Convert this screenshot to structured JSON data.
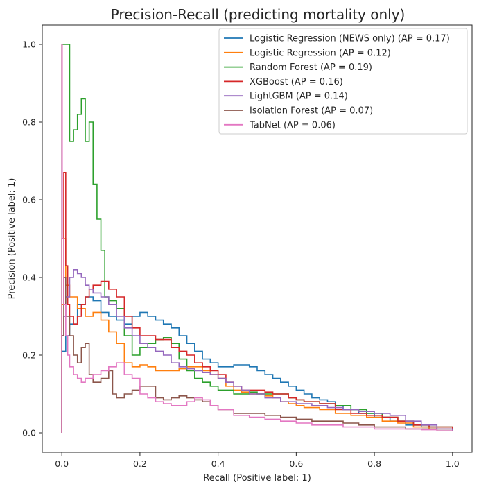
{
  "chart_data": {
    "type": "line",
    "title": "Precision-Recall (predicting mortality only)",
    "xlabel": "Recall (Positive label: 1)",
    "ylabel": "Precision (Positive label: 1)",
    "xlim": [
      -0.05,
      1.05
    ],
    "ylim": [
      -0.05,
      1.05
    ],
    "xticks": [
      "0.0",
      "0.2",
      "0.4",
      "0.6",
      "0.8",
      "1.0"
    ],
    "yticks": [
      "0.0",
      "0.2",
      "0.4",
      "0.6",
      "0.8",
      "1.0"
    ],
    "grid": false,
    "legend_position": "top-right",
    "series": [
      {
        "name": "Logistic Regression (NEWS only) (AP = 0.17)",
        "color": "#1f77b4",
        "x": [
          0.0,
          0.0,
          0.01,
          0.02,
          0.04,
          0.06,
          0.08,
          0.1,
          0.12,
          0.14,
          0.16,
          0.18,
          0.2,
          0.22,
          0.24,
          0.26,
          0.28,
          0.3,
          0.32,
          0.34,
          0.36,
          0.38,
          0.4,
          0.42,
          0.44,
          0.46,
          0.48,
          0.5,
          0.52,
          0.54,
          0.56,
          0.58,
          0.6,
          0.62,
          0.64,
          0.66,
          0.68,
          0.7,
          0.72,
          0.76,
          0.8,
          0.84,
          0.88,
          0.92,
          0.96,
          1.0
        ],
        "y": [
          0.0,
          0.21,
          0.25,
          0.28,
          0.33,
          0.35,
          0.34,
          0.31,
          0.3,
          0.29,
          0.28,
          0.3,
          0.31,
          0.3,
          0.29,
          0.28,
          0.27,
          0.25,
          0.23,
          0.21,
          0.19,
          0.18,
          0.17,
          0.17,
          0.175,
          0.175,
          0.17,
          0.16,
          0.15,
          0.14,
          0.13,
          0.12,
          0.11,
          0.1,
          0.09,
          0.085,
          0.08,
          0.07,
          0.06,
          0.05,
          0.04,
          0.03,
          0.02,
          0.015,
          0.01,
          0.005
        ]
      },
      {
        "name": "Logistic Regression (AP = 0.12)",
        "color": "#ff7f0e",
        "x": [
          0.0,
          0.0,
          0.005,
          0.01,
          0.02,
          0.04,
          0.06,
          0.08,
          0.1,
          0.12,
          0.14,
          0.16,
          0.18,
          0.2,
          0.22,
          0.24,
          0.26,
          0.28,
          0.3,
          0.32,
          0.34,
          0.36,
          0.38,
          0.4,
          0.42,
          0.44,
          0.46,
          0.48,
          0.5,
          0.52,
          0.54,
          0.56,
          0.58,
          0.6,
          0.62,
          0.66,
          0.7,
          0.74,
          0.78,
          0.82,
          0.86,
          0.9,
          0.94,
          1.0
        ],
        "y": [
          0.0,
          0.33,
          0.5,
          0.38,
          0.35,
          0.32,
          0.3,
          0.31,
          0.29,
          0.26,
          0.23,
          0.18,
          0.17,
          0.175,
          0.17,
          0.16,
          0.16,
          0.16,
          0.165,
          0.17,
          0.17,
          0.16,
          0.15,
          0.14,
          0.12,
          0.11,
          0.105,
          0.1,
          0.1,
          0.095,
          0.09,
          0.08,
          0.075,
          0.07,
          0.065,
          0.06,
          0.05,
          0.045,
          0.04,
          0.03,
          0.025,
          0.015,
          0.01,
          0.005
        ]
      },
      {
        "name": "Random Forest (AP = 0.19)",
        "color": "#2ca02c",
        "x": [
          0.0,
          0.0,
          0.005,
          0.01,
          0.02,
          0.03,
          0.04,
          0.05,
          0.06,
          0.07,
          0.075,
          0.08,
          0.09,
          0.1,
          0.11,
          0.12,
          0.14,
          0.16,
          0.18,
          0.2,
          0.22,
          0.24,
          0.26,
          0.28,
          0.3,
          0.32,
          0.34,
          0.36,
          0.38,
          0.4,
          0.42,
          0.44,
          0.46,
          0.48,
          0.5,
          0.52,
          0.54,
          0.56,
          0.58,
          0.6,
          0.62,
          0.66,
          0.7,
          0.74,
          0.78,
          0.82,
          0.86,
          0.9,
          0.94,
          1.0
        ],
        "y": [
          0.0,
          1.0,
          1.0,
          1.0,
          0.75,
          0.78,
          0.82,
          0.86,
          0.75,
          0.8,
          0.8,
          0.64,
          0.55,
          0.47,
          0.35,
          0.34,
          0.32,
          0.25,
          0.2,
          0.22,
          0.23,
          0.24,
          0.245,
          0.23,
          0.19,
          0.16,
          0.14,
          0.13,
          0.12,
          0.11,
          0.11,
          0.1,
          0.1,
          0.105,
          0.1,
          0.1,
          0.1,
          0.1,
          0.09,
          0.085,
          0.08,
          0.075,
          0.07,
          0.06,
          0.05,
          0.04,
          0.03,
          0.02,
          0.015,
          0.005
        ]
      },
      {
        "name": "XGBoost (AP = 0.16)",
        "color": "#d62728",
        "x": [
          0.0,
          0.0,
          0.005,
          0.01,
          0.015,
          0.02,
          0.03,
          0.04,
          0.05,
          0.06,
          0.07,
          0.08,
          0.1,
          0.12,
          0.14,
          0.16,
          0.18,
          0.2,
          0.22,
          0.24,
          0.26,
          0.28,
          0.3,
          0.32,
          0.34,
          0.36,
          0.38,
          0.4,
          0.42,
          0.44,
          0.46,
          0.48,
          0.5,
          0.52,
          0.54,
          0.56,
          0.58,
          0.6,
          0.62,
          0.66,
          0.7,
          0.74,
          0.78,
          0.82,
          0.86,
          0.9,
          0.94,
          1.0
        ],
        "y": [
          0.0,
          0.5,
          0.67,
          0.43,
          0.33,
          0.3,
          0.28,
          0.3,
          0.33,
          0.35,
          0.37,
          0.38,
          0.39,
          0.37,
          0.35,
          0.3,
          0.27,
          0.25,
          0.25,
          0.24,
          0.24,
          0.22,
          0.21,
          0.2,
          0.18,
          0.17,
          0.16,
          0.15,
          0.13,
          0.12,
          0.11,
          0.11,
          0.11,
          0.105,
          0.1,
          0.1,
          0.09,
          0.085,
          0.08,
          0.075,
          0.06,
          0.05,
          0.045,
          0.04,
          0.03,
          0.02,
          0.015,
          0.005
        ]
      },
      {
        "name": "LightGBM (AP = 0.14)",
        "color": "#9467bd",
        "x": [
          0.0,
          0.0,
          0.005,
          0.01,
          0.02,
          0.03,
          0.04,
          0.05,
          0.06,
          0.07,
          0.08,
          0.1,
          0.12,
          0.14,
          0.16,
          0.18,
          0.2,
          0.22,
          0.24,
          0.26,
          0.28,
          0.3,
          0.32,
          0.34,
          0.36,
          0.38,
          0.4,
          0.42,
          0.44,
          0.46,
          0.48,
          0.5,
          0.52,
          0.56,
          0.6,
          0.64,
          0.68,
          0.72,
          0.76,
          0.8,
          0.84,
          0.88,
          0.92,
          0.96,
          1.0
        ],
        "y": [
          0.0,
          0.25,
          0.3,
          0.35,
          0.4,
          0.42,
          0.41,
          0.4,
          0.38,
          0.37,
          0.36,
          0.35,
          0.33,
          0.3,
          0.27,
          0.25,
          0.23,
          0.22,
          0.21,
          0.2,
          0.18,
          0.17,
          0.165,
          0.16,
          0.155,
          0.15,
          0.14,
          0.13,
          0.12,
          0.11,
          0.1,
          0.1,
          0.09,
          0.08,
          0.075,
          0.07,
          0.065,
          0.06,
          0.055,
          0.05,
          0.045,
          0.03,
          0.02,
          0.01,
          0.005
        ]
      },
      {
        "name": "Isolation Forest (AP = 0.07)",
        "color": "#8c564b",
        "x": [
          0.0,
          0.0,
          0.005,
          0.01,
          0.02,
          0.03,
          0.04,
          0.05,
          0.06,
          0.07,
          0.08,
          0.1,
          0.12,
          0.13,
          0.14,
          0.16,
          0.18,
          0.2,
          0.22,
          0.24,
          0.26,
          0.28,
          0.3,
          0.32,
          0.34,
          0.36,
          0.38,
          0.4,
          0.44,
          0.48,
          0.52,
          0.56,
          0.6,
          0.64,
          0.68,
          0.72,
          0.76,
          0.8,
          0.84,
          0.88,
          0.92,
          0.96,
          1.0
        ],
        "y": [
          0.0,
          0.25,
          0.4,
          0.3,
          0.25,
          0.2,
          0.18,
          0.22,
          0.23,
          0.15,
          0.13,
          0.14,
          0.16,
          0.1,
          0.09,
          0.1,
          0.11,
          0.12,
          0.12,
          0.09,
          0.085,
          0.09,
          0.095,
          0.09,
          0.085,
          0.08,
          0.07,
          0.06,
          0.05,
          0.05,
          0.045,
          0.04,
          0.035,
          0.03,
          0.03,
          0.025,
          0.02,
          0.015,
          0.015,
          0.01,
          0.01,
          0.005,
          0.005
        ]
      },
      {
        "name": "TabNet (AP = 0.06)",
        "color": "#e377c2",
        "x": [
          0.0,
          0.0,
          0.001,
          0.005,
          0.01,
          0.015,
          0.02,
          0.03,
          0.04,
          0.05,
          0.06,
          0.08,
          0.1,
          0.12,
          0.14,
          0.16,
          0.18,
          0.2,
          0.22,
          0.24,
          0.26,
          0.28,
          0.3,
          0.32,
          0.34,
          0.36,
          0.38,
          0.4,
          0.44,
          0.48,
          0.52,
          0.56,
          0.6,
          0.64,
          0.68,
          0.72,
          0.76,
          0.8,
          0.84,
          0.88,
          0.92,
          0.96,
          1.0
        ],
        "y": [
          0.0,
          1.0,
          0.5,
          0.33,
          0.25,
          0.2,
          0.17,
          0.15,
          0.14,
          0.13,
          0.14,
          0.15,
          0.16,
          0.17,
          0.18,
          0.15,
          0.14,
          0.1,
          0.09,
          0.08,
          0.075,
          0.07,
          0.07,
          0.08,
          0.09,
          0.085,
          0.07,
          0.06,
          0.045,
          0.04,
          0.035,
          0.03,
          0.025,
          0.02,
          0.02,
          0.015,
          0.015,
          0.01,
          0.01,
          0.01,
          0.008,
          0.005,
          0.005
        ]
      }
    ]
  }
}
